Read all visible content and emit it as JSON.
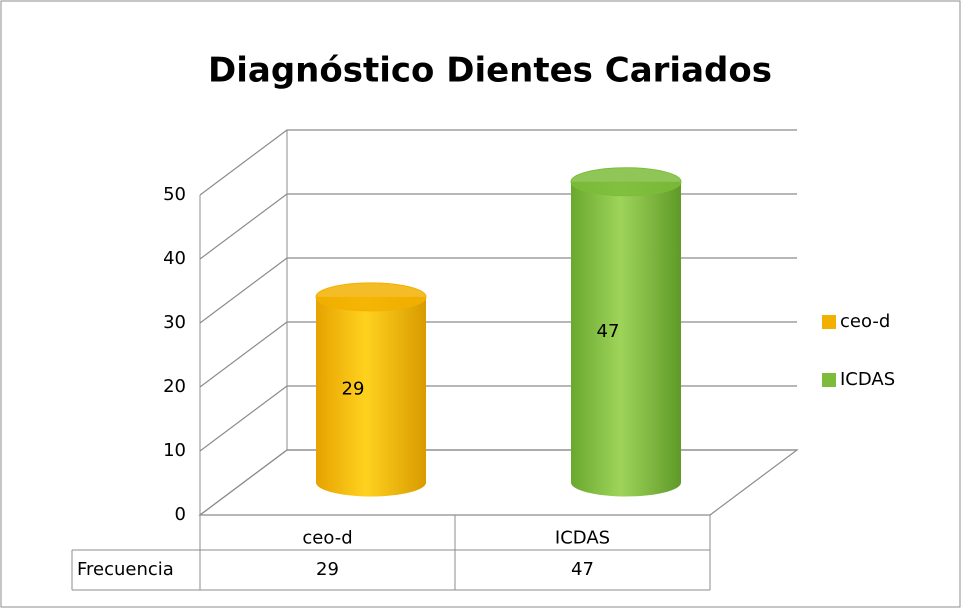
{
  "chart_data": {
    "type": "bar3d",
    "title": "Diagnóstico Dientes Cariados",
    "categories": [
      "ceo-d",
      "ICDAS"
    ],
    "colors": [
      "#f2b000",
      "#7cbc3a"
    ],
    "series": [
      {
        "name": "Frecuencia",
        "values": [
          29,
          47
        ]
      }
    ],
    "ylim": [
      0,
      50
    ],
    "yticks": [
      0,
      10,
      20,
      30,
      40,
      50
    ],
    "grid": true,
    "legend": "right",
    "data_table": true
  }
}
